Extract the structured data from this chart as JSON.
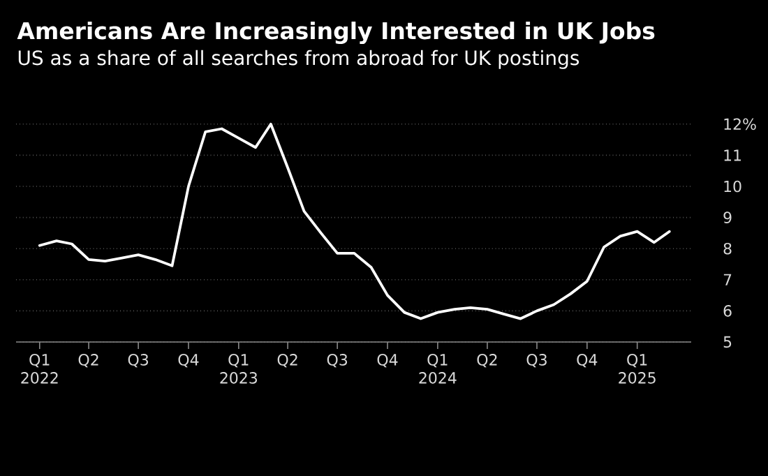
{
  "chart_data": {
    "type": "line",
    "title": "Americans Are Increasingly Interested in UK Jobs",
    "subtitle": "US as a share of all searches from abroad for UK postings",
    "x": [
      "2022-01",
      "2022-02",
      "2022-03",
      "2022-04",
      "2022-05",
      "2022-06",
      "2022-07",
      "2022-08",
      "2022-09",
      "2022-10",
      "2022-11",
      "2022-12",
      "2023-01",
      "2023-02",
      "2023-03",
      "2023-04",
      "2023-05",
      "2023-06",
      "2023-07",
      "2023-08",
      "2023-09",
      "2023-10",
      "2023-11",
      "2023-12",
      "2024-01",
      "2024-02",
      "2024-03",
      "2024-04",
      "2024-05",
      "2024-06",
      "2024-07",
      "2024-08",
      "2024-09",
      "2024-10",
      "2024-11",
      "2024-12",
      "2025-01",
      "2025-02",
      "2025-03"
    ],
    "series": [
      {
        "color": "#ffffff",
        "values": [
          8.1,
          8.25,
          8.15,
          7.65,
          7.6,
          7.7,
          7.8,
          7.65,
          7.45,
          10.0,
          11.75,
          11.85,
          11.55,
          11.25,
          12.0,
          10.6,
          9.2,
          8.5,
          7.85,
          7.85,
          7.4,
          6.5,
          5.95,
          5.75,
          5.95,
          6.05,
          6.1,
          6.05,
          5.9,
          5.75,
          6.0,
          6.2,
          6.55,
          6.95,
          8.05,
          8.4,
          8.55,
          8.2,
          8.55
        ]
      }
    ],
    "xlim": [
      "2021-11-19",
      "2025-04-10"
    ],
    "xticks": [
      {
        "value": "2022-01",
        "label": "Q1 2022"
      },
      {
        "value": "2022-04",
        "label": "Q2"
      },
      {
        "value": "2022-07",
        "label": "Q3"
      },
      {
        "value": "2022-10",
        "label": "Q4"
      },
      {
        "value": "2023-01",
        "label": "Q1 2023"
      },
      {
        "value": "2023-04",
        "label": "Q2"
      },
      {
        "value": "2023-07",
        "label": "Q3"
      },
      {
        "value": "2023-10",
        "label": "Q4"
      },
      {
        "value": "2024-01",
        "label": "Q1 2024"
      },
      {
        "value": "2024-04",
        "label": "Q2"
      },
      {
        "value": "2024-07",
        "label": "Q3"
      },
      {
        "value": "2024-10",
        "label": "Q4"
      },
      {
        "value": "2025-01",
        "label": "Q1 2025"
      }
    ],
    "ylim": [
      5,
      12
    ],
    "yticks": [
      5,
      6,
      7,
      8,
      9,
      10,
      11,
      {
        "value": 12,
        "label": "12%"
      }
    ],
    "grid": "y",
    "marker": "none",
    "line_style": "solid"
  }
}
